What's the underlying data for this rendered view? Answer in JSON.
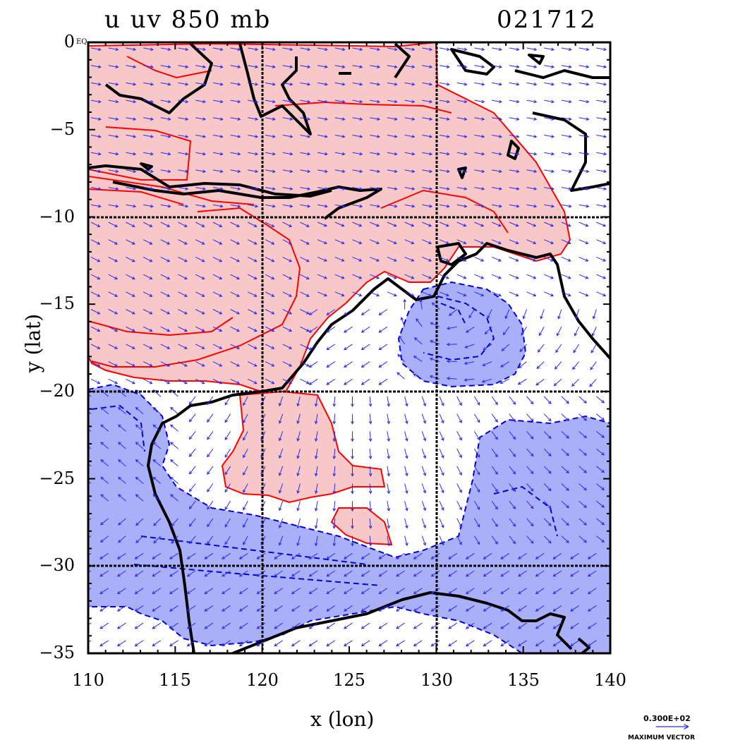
{
  "title": {
    "left": "u  uv 850  mb",
    "right": "021712"
  },
  "axes": {
    "xlabel": "x (lon)",
    "ylabel": "y (lat)",
    "x_ticks": [
      "110",
      "115",
      "120",
      "125",
      "130",
      "135",
      "140"
    ],
    "y_ticks": [
      "0",
      "−5",
      "−10",
      "−15",
      "−20",
      "−25",
      "−30",
      "−35"
    ],
    "x_range": [
      110,
      140
    ],
    "y_range": [
      -35,
      0
    ],
    "grid_lines_lon": [
      120,
      130
    ],
    "grid_lines_lat": [
      -10,
      -20,
      -30
    ],
    "corner_mark": "EQ"
  },
  "map_data": {
    "region": "Maritime Continent / Northern Australia",
    "variable": "u-wind with uv vectors at 850 mb",
    "shading": {
      "positive_color": "#f8c8c8",
      "positive_line": "#ff0000",
      "negative_color": "#aab0f8",
      "negative_line": "#0000dd"
    },
    "coast_color": "#000000",
    "vector_color": "#2a2aee"
  },
  "vector_legend": {
    "value": "0.300E+02",
    "label": "MAXIMUM VECTOR"
  }
}
